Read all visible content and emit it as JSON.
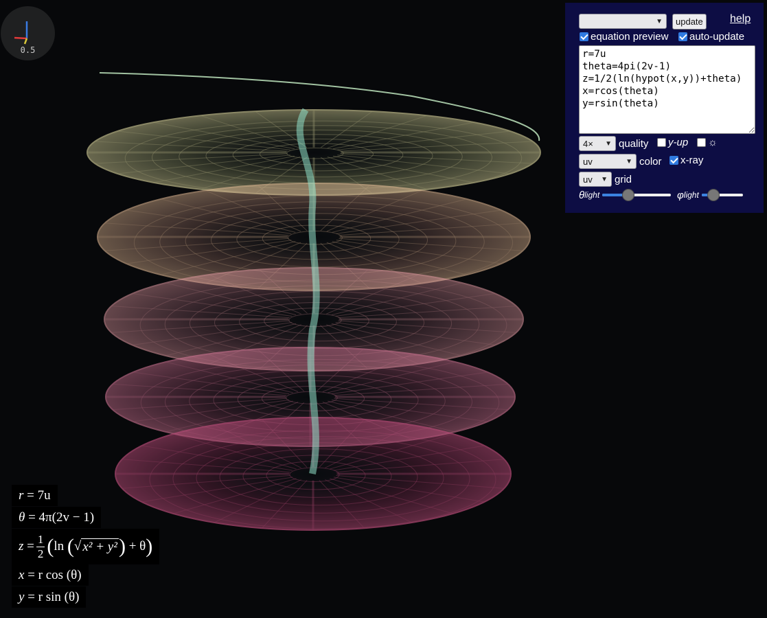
{
  "app": {
    "scale_label": "0.5"
  },
  "controls": {
    "preset_select": "",
    "update_button": "update",
    "help_link": "help",
    "equation_preview": {
      "label": "equation preview",
      "checked": true
    },
    "auto_update": {
      "label": "auto-update",
      "checked": true
    },
    "equation_text": "r=7u\ntheta=4pi(2v-1)\nz=1/2(ln(hypot(x,y))+theta)\nx=rcos(theta)\ny=rsin(theta)",
    "quality_select": "4×",
    "quality_label": "quality",
    "y_up": {
      "label": "y-up",
      "checked": false
    },
    "sun": {
      "label": "☼",
      "checked": false
    },
    "color_select": "uv",
    "color_label": "color",
    "xray": {
      "label": "x-ray",
      "checked": true
    },
    "grid_select": "uv",
    "grid_label": "grid",
    "theta_light": {
      "symbol": "θ",
      "sub": "light",
      "value": 0.38
    },
    "phi_light": {
      "symbol": "φ",
      "sub": "light",
      "value": 0.28
    }
  },
  "preview": {
    "line1": {
      "lhs": "r",
      "rhs": "= 7u"
    },
    "line2": {
      "lhs": "θ",
      "rhs": "= 4π(2v − 1)"
    },
    "line3": {
      "lhs": "z",
      "eq": "=",
      "num": "1",
      "den": "2",
      "ln": "ln",
      "sqrt": "x² + y²",
      "tail": "+ θ"
    },
    "line4": {
      "lhs": "x",
      "rhs": "= r cos (θ)"
    },
    "line5": {
      "lhs": "y",
      "rhs": "= r sin (θ)"
    }
  },
  "colors": {
    "background": "#07080a",
    "panel": "#0d0d44",
    "axis_x": "#e23a3a",
    "axis_y": "#3a7be2",
    "axis_z": "#d7c63a"
  }
}
